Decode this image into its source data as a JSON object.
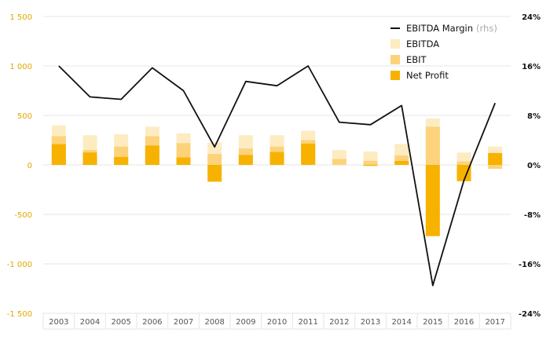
{
  "chart_data": {
    "type": "bar",
    "categories": [
      "2003",
      "2004",
      "2005",
      "2006",
      "2007",
      "2008",
      "2009",
      "2010",
      "2011",
      "2012",
      "2013",
      "2014",
      "2015",
      "2016",
      "2017"
    ],
    "series": [
      {
        "name": "EBITDA",
        "kind": "bar",
        "color": "#fdebc2",
        "values": [
          400,
          300,
          310,
          385,
          320,
          225,
          300,
          300,
          345,
          150,
          135,
          210,
          470,
          125,
          185
        ]
      },
      {
        "name": "EBIT",
        "kind": "bar",
        "color": "#fcd37a",
        "values": [
          290,
          150,
          185,
          290,
          220,
          110,
          165,
          185,
          250,
          60,
          40,
          95,
          385,
          35,
          -40
        ]
      },
      {
        "name": "Net Profit",
        "kind": "bar",
        "color": "#f7b200",
        "values": [
          210,
          125,
          80,
          195,
          75,
          -170,
          100,
          130,
          215,
          0,
          -10,
          40,
          -720,
          -165,
          120
        ]
      },
      {
        "name": "EBITDA Margin",
        "kind": "line",
        "axis": "right",
        "color": "#111111",
        "values": [
          16.0,
          11.0,
          10.6,
          15.7,
          12.0,
          2.9,
          13.5,
          12.8,
          16.0,
          6.9,
          6.5,
          9.6,
          -19.5,
          -2.5,
          10.0
        ]
      }
    ],
    "legend": [
      {
        "label": "EBITDA Margin",
        "note": "(rhs)",
        "swatch": "line",
        "color": "#111111"
      },
      {
        "label": "EBITDA",
        "note": "",
        "swatch": "box",
        "color": "#fdebc2"
      },
      {
        "label": "EBIT",
        "note": "",
        "swatch": "box",
        "color": "#fcd37a"
      },
      {
        "label": "Net Profit",
        "note": "",
        "swatch": "box",
        "color": "#f7b200"
      }
    ],
    "legend_position": "top-right",
    "ylim": [
      -1500,
      1500
    ],
    "yticks": [
      1500,
      1000,
      500,
      0,
      -500,
      -1000,
      -1500
    ],
    "ytick_labels": [
      "1 500",
      "1 000",
      "500",
      "0",
      "-500",
      "-1 000",
      "-1 500"
    ],
    "y2lim": [
      -24,
      24
    ],
    "y2ticks": [
      24,
      16,
      8,
      0,
      -8,
      -16,
      -24
    ],
    "y2tick_labels": [
      "24%",
      "16%",
      "8%",
      "0%",
      "-8%",
      "-16%",
      "-24%"
    ],
    "left_tick_color": "#e0a800",
    "grid": true,
    "title": "",
    "xlabel": "",
    "ylabel": ""
  }
}
